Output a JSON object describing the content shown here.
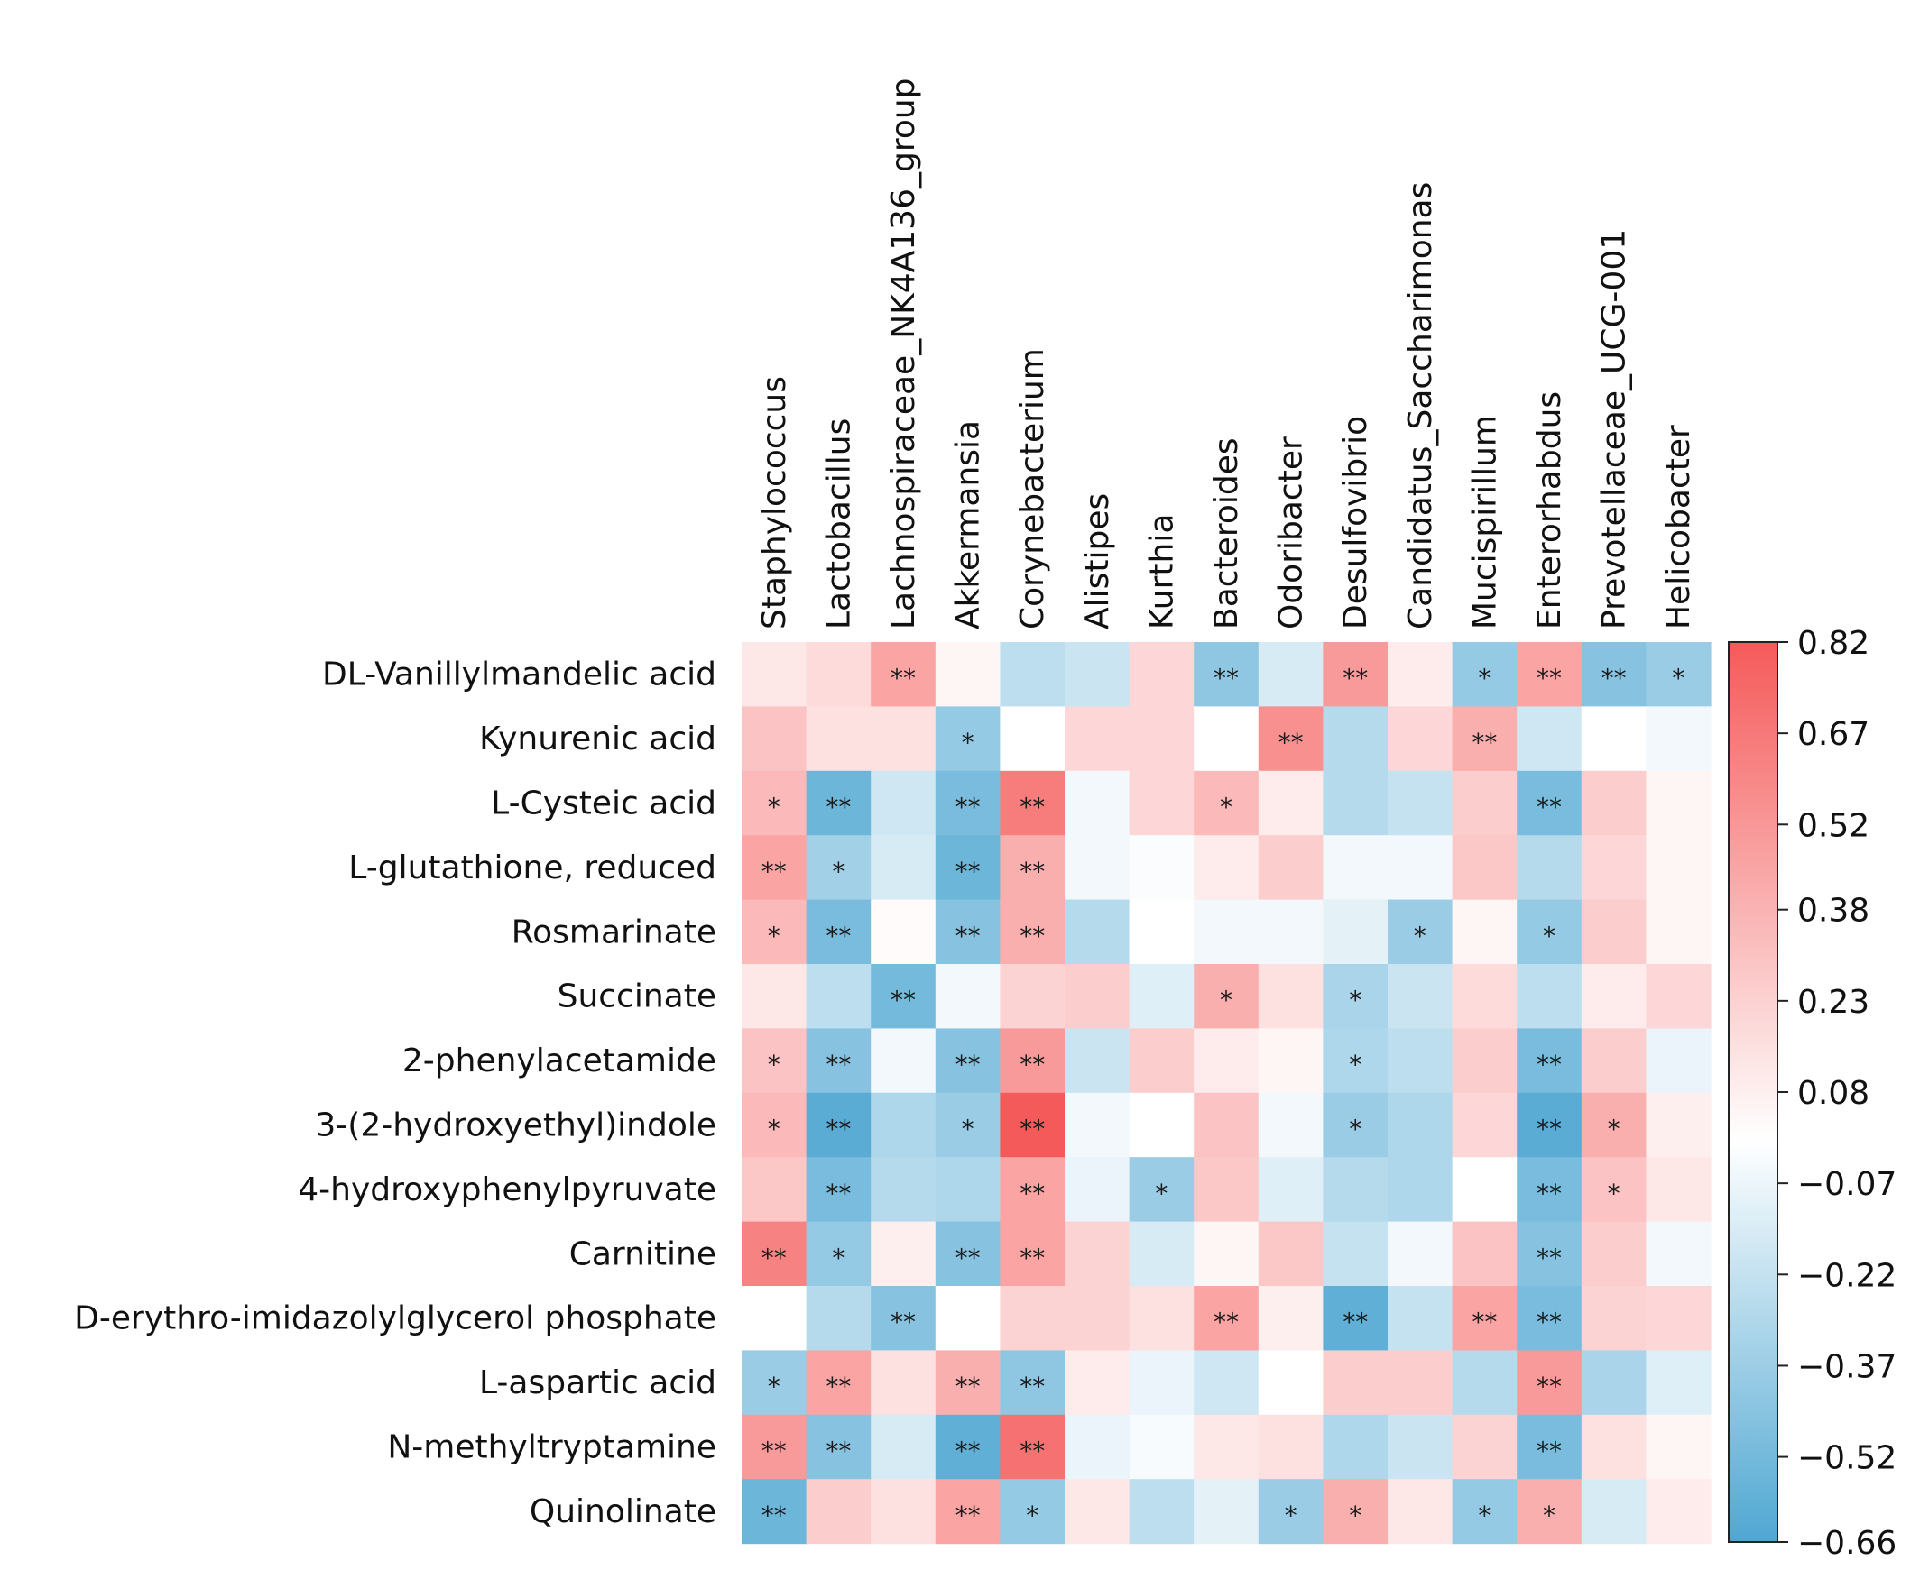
{
  "chart_data": {
    "type": "heatmap",
    "title": "",
    "columns": [
      "Staphylococcus",
      "Lactobacillus",
      "Lachnospiraceae_NK4A136_group",
      "Akkermansia",
      "Corynebacterium",
      "Alistipes",
      "Kurthia",
      "Bacteroides",
      "Odoribacter",
      "Desulfovibrio",
      "Candidatus_Saccharimonas",
      "Mucispirillum",
      "Enterorhabdus",
      "Prevotellaceae_UCG-001",
      "Helicobacter"
    ],
    "rows": [
      "DL-Vanillylmandelic acid",
      "Kynurenic acid",
      "L-Cysteic acid",
      "L-glutathione, reduced",
      "Rosmarinate",
      "Succinate",
      "2-phenylacetamide",
      "3-(2-hydroxyethyl)indole",
      "4-hydroxyphenylpyruvate",
      "Carnitine",
      "D-erythro-imidazolylglycerol phosphate",
      "L-aspartic acid",
      "N-methyltryptamine",
      "Quinolinate"
    ],
    "values": [
      [
        0.12,
        0.18,
        0.45,
        0.05,
        -0.25,
        -0.2,
        0.2,
        -0.42,
        -0.15,
        0.5,
        0.1,
        -0.4,
        0.45,
        -0.45,
        -0.38
      ],
      [
        0.3,
        0.15,
        0.15,
        -0.4,
        0.0,
        0.2,
        0.2,
        0.0,
        0.55,
        -0.28,
        0.2,
        0.4,
        -0.18,
        0.0,
        -0.05
      ],
      [
        0.35,
        -0.55,
        -0.18,
        -0.5,
        0.65,
        -0.05,
        0.2,
        0.35,
        0.1,
        -0.28,
        -0.22,
        0.25,
        -0.5,
        0.25,
        0.05
      ],
      [
        0.45,
        -0.35,
        -0.15,
        -0.55,
        0.4,
        -0.05,
        -0.02,
        0.1,
        0.25,
        -0.05,
        -0.05,
        0.28,
        -0.28,
        0.2,
        0.05
      ],
      [
        0.35,
        -0.5,
        0.02,
        -0.45,
        0.4,
        -0.28,
        0.0,
        -0.05,
        -0.05,
        -0.1,
        -0.38,
        0.05,
        -0.4,
        0.25,
        0.05
      ],
      [
        0.12,
        -0.25,
        -0.52,
        -0.05,
        0.22,
        0.25,
        -0.12,
        0.4,
        0.15,
        -0.32,
        -0.2,
        0.18,
        -0.25,
        0.1,
        0.2
      ],
      [
        0.3,
        -0.45,
        -0.05,
        -0.45,
        0.5,
        -0.2,
        0.25,
        0.1,
        0.05,
        -0.3,
        -0.25,
        0.25,
        -0.5,
        0.25,
        -0.08
      ],
      [
        0.35,
        -0.62,
        -0.3,
        -0.38,
        0.82,
        -0.05,
        0.0,
        0.3,
        -0.05,
        -0.38,
        -0.3,
        0.2,
        -0.62,
        0.4,
        0.08
      ],
      [
        0.28,
        -0.5,
        -0.28,
        -0.3,
        0.45,
        -0.08,
        -0.38,
        0.28,
        -0.12,
        -0.28,
        -0.3,
        0.0,
        -0.5,
        0.3,
        0.12
      ],
      [
        0.62,
        -0.4,
        0.08,
        -0.45,
        0.45,
        0.22,
        -0.15,
        0.05,
        0.28,
        -0.22,
        -0.05,
        0.3,
        -0.45,
        0.25,
        -0.05
      ],
      [
        0.0,
        -0.28,
        -0.45,
        0.0,
        0.22,
        0.22,
        0.15,
        0.45,
        0.08,
        -0.6,
        -0.22,
        0.45,
        -0.5,
        0.22,
        0.2
      ],
      [
        -0.38,
        0.45,
        0.15,
        0.4,
        -0.42,
        0.1,
        -0.08,
        -0.18,
        0.0,
        0.25,
        0.25,
        -0.28,
        0.5,
        -0.32,
        -0.12
      ],
      [
        0.5,
        -0.45,
        -0.15,
        -0.6,
        0.7,
        -0.08,
        -0.03,
        0.12,
        0.15,
        -0.3,
        -0.2,
        0.22,
        -0.5,
        0.15,
        0.05
      ],
      [
        -0.55,
        0.25,
        0.15,
        0.45,
        -0.4,
        0.12,
        -0.25,
        -0.1,
        -0.38,
        0.4,
        0.12,
        -0.4,
        0.4,
        -0.15,
        0.1
      ]
    ],
    "significance": [
      [
        "",
        "",
        "**",
        "",
        "",
        "",
        "",
        "**",
        "",
        "**",
        "",
        "*",
        "**",
        "**",
        "*"
      ],
      [
        "",
        "",
        "",
        "*",
        "",
        "",
        "",
        "",
        "**",
        "",
        "",
        "**",
        "",
        "",
        ""
      ],
      [
        "*",
        "**",
        "",
        "**",
        "**",
        "",
        "",
        "*",
        "",
        "",
        "",
        "",
        "**",
        "",
        ""
      ],
      [
        "**",
        "*",
        "",
        "**",
        "**",
        "",
        "",
        "",
        "",
        "",
        "",
        "",
        "",
        "",
        ""
      ],
      [
        "*",
        "**",
        "",
        "**",
        "**",
        "",
        "",
        "",
        "",
        "",
        "*",
        "",
        "*",
        "",
        ""
      ],
      [
        "",
        "",
        "**",
        "",
        "",
        "",
        "",
        "*",
        "",
        "*",
        "",
        "",
        "",
        "",
        ""
      ],
      [
        "*",
        "**",
        "",
        "**",
        "**",
        "",
        "",
        "",
        "",
        "*",
        "",
        "",
        "**",
        "",
        ""
      ],
      [
        "*",
        "**",
        "",
        "*",
        "**",
        "",
        "",
        "",
        "",
        "*",
        "",
        "",
        "**",
        "*",
        ""
      ],
      [
        "",
        "**",
        "",
        "",
        "**",
        "",
        "*",
        "",
        "",
        "",
        "",
        "",
        "**",
        "*",
        ""
      ],
      [
        "**",
        "*",
        "",
        "**",
        "**",
        "",
        "",
        "",
        "",
        "",
        "",
        "",
        "**",
        "",
        ""
      ],
      [
        "",
        "",
        "**",
        "",
        "",
        "",
        "",
        "**",
        "",
        "**",
        "",
        "**",
        "**",
        "",
        ""
      ],
      [
        "*",
        "**",
        "",
        "**",
        "**",
        "",
        "",
        "",
        "",
        "",
        "",
        "",
        "**",
        "",
        ""
      ],
      [
        "**",
        "**",
        "",
        "**",
        "**",
        "",
        "",
        "",
        "",
        "",
        "",
        "",
        "**",
        "",
        ""
      ],
      [
        "**",
        "",
        "",
        "**",
        "*",
        "",
        "",
        "",
        "*",
        "*",
        "",
        "*",
        "*",
        "",
        ""
      ]
    ],
    "colorbar": {
      "min": -0.66,
      "max": 0.82,
      "ticks": [
        "0.82",
        "0.67",
        "0.52",
        "0.38",
        "0.23",
        "0.08",
        "−0.07",
        "−0.22",
        "−0.37",
        "−0.52",
        "−0.66"
      ],
      "tick_values": [
        0.82,
        0.67,
        0.52,
        0.38,
        0.23,
        0.08,
        -0.07,
        -0.22,
        -0.37,
        -0.52,
        -0.66
      ],
      "colors": {
        "low": "#4fa7d2",
        "mid": "#ffffff",
        "high": "#f55a5a"
      }
    }
  }
}
